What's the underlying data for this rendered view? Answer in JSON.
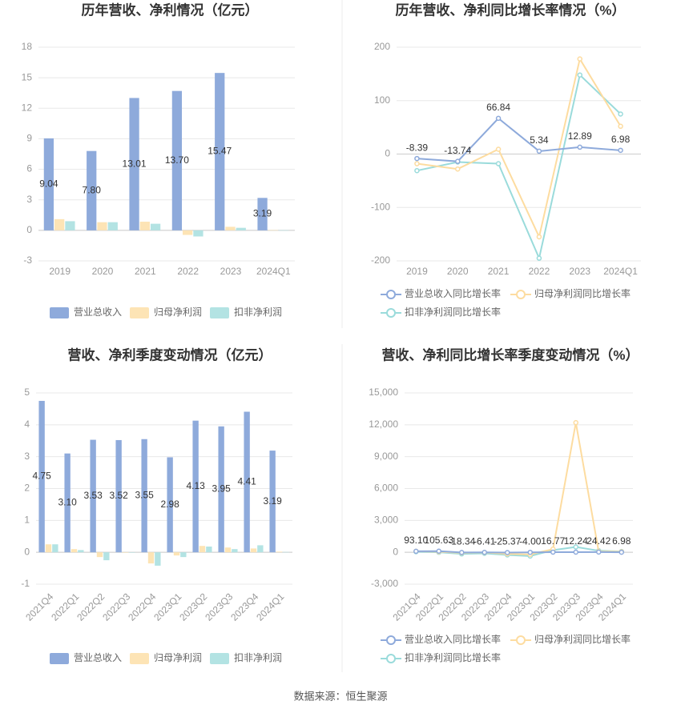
{
  "chart_data": [
    {
      "type": "bar",
      "title": "历年营收、净利情况（亿元）",
      "categories": [
        "2019",
        "2020",
        "2021",
        "2022",
        "2023",
        "2024Q1"
      ],
      "series": [
        {
          "name": "营业总收入",
          "color": "#8eaadb",
          "values": [
            9.04,
            7.8,
            13.01,
            13.7,
            15.47,
            3.19
          ],
          "value_labels": [
            "9.04",
            "7.80",
            "13.01",
            "13.70",
            "15.47",
            "3.19"
          ]
        },
        {
          "name": "归母净利润",
          "color": "#fde4b5",
          "values": [
            1.1,
            0.8,
            0.85,
            -0.45,
            0.35,
            0.02
          ]
        },
        {
          "name": "扣非净利润",
          "color": "#b3e3e3",
          "values": [
            0.9,
            0.8,
            0.65,
            -0.6,
            0.25,
            0.01
          ]
        }
      ],
      "ylim": [
        -3,
        18
      ],
      "yticks": [
        -3,
        0,
        3,
        6,
        9,
        12,
        15,
        18
      ],
      "grid": true,
      "legend": "bottom"
    },
    {
      "type": "line",
      "title": "历年营收、净利同比增长率情况（%）",
      "categories": [
        "2019",
        "2020",
        "2021",
        "2022",
        "2023",
        "2024Q1"
      ],
      "series": [
        {
          "name": "营业总收入同比增长率",
          "color": "#8eaadb",
          "values": [
            -8.39,
            -13.74,
            66.84,
            5.34,
            12.89,
            6.98
          ],
          "labels": true
        },
        {
          "name": "归母净利润同比增长率",
          "color": "#fddca0",
          "values": [
            -18,
            -28,
            9,
            -155,
            178,
            52
          ]
        },
        {
          "name": "扣非净利润同比增长率",
          "color": "#9adbdb",
          "values": [
            -31,
            -15,
            -18,
            -195,
            148,
            75
          ]
        }
      ],
      "ylim": [
        -200,
        200
      ],
      "yticks": [
        -200,
        -100,
        0,
        100,
        200
      ],
      "grid": true,
      "legend": "bottom"
    },
    {
      "type": "bar",
      "title": "营收、净利季度变动情况（亿元）",
      "categories": [
        "2021Q4",
        "2022Q1",
        "2022Q2",
        "2022Q3",
        "2022Q4",
        "2023Q1",
        "2023Q2",
        "2023Q3",
        "2023Q4",
        "2024Q1"
      ],
      "series": [
        {
          "name": "营业总收入",
          "color": "#8eaadb",
          "values": [
            4.75,
            3.1,
            3.53,
            3.52,
            3.55,
            2.98,
            4.13,
            3.95,
            4.41,
            3.19
          ],
          "value_labels": [
            "4.75",
            "3.10",
            "3.53",
            "3.52",
            "3.55",
            "2.98",
            "4.13",
            "3.95",
            "4.41",
            "3.19"
          ]
        },
        {
          "name": "归母净利润",
          "color": "#fde4b5",
          "values": [
            0.25,
            0.1,
            -0.15,
            0.0,
            -0.35,
            -0.1,
            0.2,
            0.15,
            0.12,
            0.02
          ]
        },
        {
          "name": "扣非净利润",
          "color": "#b3e3e3",
          "values": [
            0.25,
            0.07,
            -0.25,
            0.0,
            -0.42,
            -0.15,
            0.18,
            0.1,
            0.22,
            0.01
          ]
        }
      ],
      "ylim": [
        -1,
        5
      ],
      "yticks": [
        -1,
        0,
        1,
        2,
        3,
        4,
        5
      ],
      "grid": true,
      "legend": "bottom"
    },
    {
      "type": "line",
      "title": "营收、净利同比增长率季度变动情况（%）",
      "categories": [
        "2021Q4",
        "2022Q1",
        "2022Q2",
        "2022Q3",
        "2022Q4",
        "2023Q1",
        "2023Q2",
        "2023Q3",
        "2023Q4",
        "2024Q1"
      ],
      "series": [
        {
          "name": "营业总收入同比增长率",
          "color": "#8eaadb",
          "values": [
            93.1,
            105.63,
            -18.34,
            -6.41,
            -25.37,
            -4.0,
            16.77,
            12.24,
            24.42,
            6.98
          ],
          "value_labels": [
            "93.10",
            "105.63",
            "-18.34",
            "-6.41",
            "-25.37",
            "-4.00",
            "16.77",
            "12.24",
            "24.42",
            "6.98"
          ],
          "labels": true
        },
        {
          "name": "归母净利润同比增长率",
          "color": "#fddca0",
          "values": [
            100,
            50,
            -50,
            -20,
            -150,
            -200,
            300,
            12200,
            80,
            52
          ]
        },
        {
          "name": "扣非净利润同比增长率",
          "color": "#9adbdb",
          "values": [
            50,
            0,
            -150,
            -100,
            -250,
            -350,
            200,
            500,
            150,
            75
          ]
        }
      ],
      "ylim": [
        -3000,
        15000
      ],
      "yticks": [
        {
          "value": -3000,
          "label": "-3,000"
        },
        0,
        {
          "value": 3000,
          "label": "3,000"
        },
        {
          "value": 6000,
          "label": "6,000"
        },
        {
          "value": 9000,
          "label": "9,000"
        },
        {
          "value": 12000,
          "label": "12,000"
        },
        {
          "value": 15000,
          "label": "15,000"
        }
      ],
      "grid": true,
      "legend": "bottom"
    }
  ],
  "source": "数据来源：恒生聚源"
}
